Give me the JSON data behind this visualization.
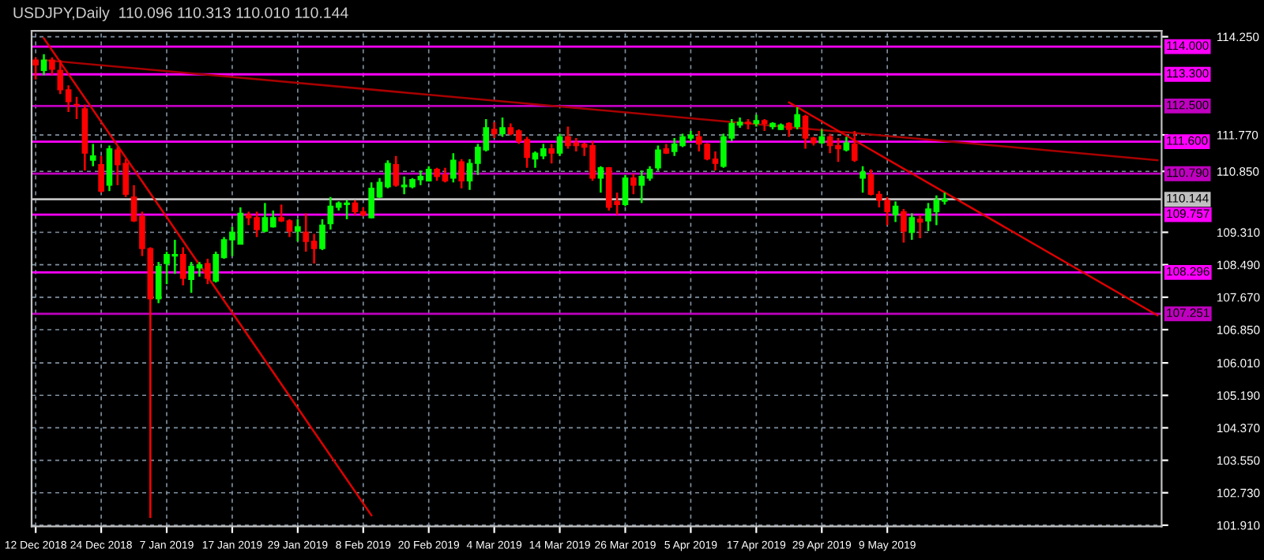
{
  "chart_data": {
    "type": "candlestick",
    "title": "USDJPY,Daily  110.096 110.313 110.010 110.144",
    "categories": [
      "12 Dec 2018",
      null,
      null,
      null,
      null,
      null,
      null,
      null,
      "24 Dec 2018",
      null,
      null,
      null,
      null,
      null,
      null,
      null,
      "7 Jan 2019",
      null,
      null,
      null,
      null,
      null,
      null,
      null,
      "17 Jan 2019",
      null,
      null,
      null,
      null,
      null,
      null,
      null,
      "29 Jan 2019",
      null,
      null,
      null,
      null,
      null,
      null,
      null,
      "8 Feb 2019",
      null,
      null,
      null,
      null,
      null,
      null,
      null,
      "20 Feb 2019",
      null,
      null,
      null,
      null,
      null,
      null,
      null,
      "4 Mar 2019",
      null,
      null,
      null,
      null,
      null,
      null,
      null,
      "14 Mar 2019",
      null,
      null,
      null,
      null,
      null,
      null,
      null,
      "26 Mar 2019",
      null,
      null,
      null,
      null,
      null,
      null,
      null,
      "5 Apr 2019",
      null,
      null,
      null,
      null,
      null,
      null,
      null,
      "17 Apr 2019",
      null,
      null,
      null,
      null,
      null,
      null,
      null,
      "29 Apr 2019",
      null,
      null,
      null,
      null,
      null,
      null,
      null,
      "9 May 2019",
      null,
      null,
      null,
      null,
      null,
      null,
      null,
      null,
      null,
      null,
      null,
      null,
      null,
      null,
      null,
      null,
      null,
      null,
      null,
      null,
      null,
      null,
      null,
      null,
      null,
      null,
      null,
      null,
      null,
      null,
      null,
      null,
      null
    ],
    "ohlc": [
      [
        113.66,
        113.73,
        113.17,
        113.54
      ],
      [
        113.4,
        113.81,
        113.28,
        113.66
      ],
      [
        113.66,
        113.73,
        113.28,
        113.43
      ],
      [
        113.4,
        113.66,
        112.8,
        112.91
      ],
      [
        112.91,
        113.02,
        112.35,
        112.61
      ],
      [
        112.54,
        112.73,
        112.17,
        112.52
      ],
      [
        112.43,
        112.54,
        110.87,
        111.31
      ],
      [
        111.13,
        111.54,
        110.98,
        111.24
      ],
      [
        111.02,
        111.24,
        110.31,
        110.35
      ],
      [
        110.5,
        111.5,
        110.35,
        111.42
      ],
      [
        111.39,
        111.46,
        110.5,
        111.02
      ],
      [
        111.05,
        111.16,
        110.2,
        110.27
      ],
      [
        110.2,
        110.5,
        109.57,
        109.6
      ],
      [
        109.71,
        109.83,
        108.71,
        108.9
      ],
      [
        108.9,
        108.93,
        102.09,
        107.63
      ],
      [
        107.63,
        108.56,
        107.52,
        108.45
      ],
      [
        108.52,
        108.82,
        108.0,
        108.75
      ],
      [
        108.71,
        109.12,
        108.26,
        108.75
      ],
      [
        108.75,
        108.93,
        107.97,
        108.15
      ],
      [
        108.12,
        108.56,
        107.78,
        108.45
      ],
      [
        108.41,
        108.56,
        108.19,
        108.49
      ],
      [
        108.52,
        108.64,
        108.0,
        108.15
      ],
      [
        108.08,
        108.82,
        108.04,
        108.75
      ],
      [
        108.67,
        109.19,
        108.64,
        109.12
      ],
      [
        109.12,
        109.45,
        108.71,
        109.31
      ],
      [
        109.01,
        109.94,
        109.01,
        109.79
      ],
      [
        109.75,
        109.83,
        109.49,
        109.68
      ],
      [
        109.68,
        109.83,
        109.19,
        109.38
      ],
      [
        109.34,
        110.05,
        109.31,
        109.68
      ],
      [
        109.45,
        109.86,
        109.43,
        109.68
      ],
      [
        109.68,
        110.01,
        109.57,
        109.6
      ],
      [
        109.6,
        109.64,
        109.19,
        109.34
      ],
      [
        109.34,
        109.64,
        109.08,
        109.45
      ],
      [
        109.31,
        109.79,
        108.82,
        109.08
      ],
      [
        109.08,
        109.27,
        108.52,
        108.9
      ],
      [
        108.9,
        109.64,
        108.86,
        109.49
      ],
      [
        109.53,
        110.2,
        109.38,
        109.97
      ],
      [
        109.94,
        110.09,
        109.86,
        110.05
      ],
      [
        110.01,
        110.12,
        109.64,
        110.05
      ],
      [
        110.05,
        110.12,
        109.75,
        109.83
      ],
      [
        109.83,
        109.94,
        109.71,
        109.75
      ],
      [
        109.68,
        110.57,
        109.66,
        110.42
      ],
      [
        110.2,
        110.68,
        110.18,
        110.57
      ],
      [
        110.46,
        111.13,
        110.42,
        111.05
      ],
      [
        111.02,
        111.24,
        110.46,
        110.5
      ],
      [
        110.46,
        110.72,
        110.27,
        110.5
      ],
      [
        110.46,
        110.68,
        110.42,
        110.64
      ],
      [
        110.64,
        110.87,
        110.5,
        110.72
      ],
      [
        110.61,
        110.98,
        110.59,
        110.9
      ],
      [
        110.9,
        110.94,
        110.61,
        110.72
      ],
      [
        110.76,
        110.94,
        110.57,
        110.61
      ],
      [
        110.68,
        111.31,
        110.57,
        111.13
      ],
      [
        111.09,
        111.16,
        110.42,
        110.61
      ],
      [
        110.61,
        111.16,
        110.38,
        111.05
      ],
      [
        111.05,
        111.54,
        110.76,
        111.46
      ],
      [
        111.39,
        112.17,
        111.35,
        111.95
      ],
      [
        111.91,
        112.09,
        111.69,
        111.8
      ],
      [
        111.8,
        112.21,
        111.72,
        111.95
      ],
      [
        111.95,
        112.06,
        111.76,
        111.8
      ],
      [
        111.87,
        111.91,
        111.54,
        111.61
      ],
      [
        111.65,
        111.72,
        110.94,
        111.2
      ],
      [
        111.16,
        111.35,
        110.94,
        111.31
      ],
      [
        111.24,
        111.54,
        111.16,
        111.42
      ],
      [
        111.42,
        111.54,
        111.05,
        111.31
      ],
      [
        111.31,
        111.8,
        111.24,
        111.72
      ],
      [
        111.72,
        111.98,
        111.42,
        111.5
      ],
      [
        111.57,
        111.69,
        111.35,
        111.5
      ],
      [
        111.54,
        111.57,
        111.24,
        111.46
      ],
      [
        111.5,
        111.61,
        110.61,
        110.68
      ],
      [
        110.68,
        110.98,
        110.31,
        110.94
      ],
      [
        110.94,
        110.96,
        109.86,
        109.94
      ],
      [
        110.09,
        110.31,
        109.75,
        110.01
      ],
      [
        110.01,
        110.76,
        109.97,
        110.68
      ],
      [
        110.68,
        110.79,
        110.27,
        110.5
      ],
      [
        110.5,
        110.87,
        110.05,
        110.72
      ],
      [
        110.68,
        110.98,
        110.61,
        110.9
      ],
      [
        110.94,
        111.5,
        110.87,
        111.39
      ],
      [
        111.42,
        111.54,
        111.29,
        111.31
      ],
      [
        111.35,
        111.69,
        111.24,
        111.54
      ],
      [
        111.5,
        111.8,
        111.46,
        111.72
      ],
      [
        111.69,
        111.87,
        111.61,
        111.76
      ],
      [
        111.72,
        111.87,
        111.35,
        111.54
      ],
      [
        111.54,
        111.56,
        111.13,
        111.16
      ],
      [
        111.16,
        111.35,
        110.87,
        111.05
      ],
      [
        110.98,
        111.8,
        110.94,
        111.72
      ],
      [
        111.69,
        112.17,
        111.61,
        112.06
      ],
      [
        112.02,
        112.21,
        111.95,
        112.09
      ],
      [
        112.09,
        112.17,
        111.91,
        112.06
      ],
      [
        112.06,
        112.28,
        111.98,
        112.13
      ],
      [
        112.13,
        112.17,
        111.87,
        112.06
      ],
      [
        111.98,
        112.09,
        111.91,
        112.06
      ],
      [
        111.91,
        112.06,
        111.89,
        112.02
      ],
      [
        112.06,
        112.09,
        111.72,
        111.91
      ],
      [
        111.98,
        112.47,
        111.91,
        112.28
      ],
      [
        112.24,
        112.28,
        111.42,
        111.69
      ],
      [
        111.69,
        111.72,
        111.5,
        111.57
      ],
      [
        111.57,
        111.91,
        111.54,
        111.72
      ],
      [
        111.72,
        111.8,
        111.31,
        111.5
      ],
      [
        111.5,
        111.69,
        111.09,
        111.42
      ],
      [
        111.39,
        111.72,
        111.35,
        111.57
      ],
      [
        111.54,
        111.87,
        111.09,
        111.13
      ],
      [
        110.68,
        110.98,
        110.31,
        110.83
      ],
      [
        110.76,
        110.9,
        110.24,
        110.27
      ],
      [
        110.27,
        110.35,
        109.94,
        110.12
      ],
      [
        110.12,
        110.2,
        109.49,
        109.83
      ],
      [
        109.75,
        110.09,
        109.57,
        109.97
      ],
      [
        109.83,
        109.9,
        109.05,
        109.34
      ],
      [
        109.31,
        109.79,
        109.12,
        109.68
      ],
      [
        109.64,
        109.75,
        109.16,
        109.57
      ],
      [
        109.6,
        110.05,
        109.34,
        109.9
      ],
      [
        109.83,
        110.24,
        109.49,
        110.12
      ],
      [
        110.096,
        110.313,
        110.01,
        110.144
      ],
      null,
      null,
      null,
      null,
      null,
      null,
      null,
      null,
      null,
      null,
      null,
      null,
      null,
      null,
      null,
      null,
      null,
      null,
      null,
      null,
      null,
      null,
      null,
      null,
      null,
      null
    ],
    "series": [
      {
        "type": "line",
        "color": "#a80000",
        "values": [
          null,
          113.66,
          null,
          null,
          null,
          null,
          null,
          null,
          null,
          null,
          null,
          null,
          null,
          null,
          null,
          null,
          null,
          null,
          null,
          null,
          null,
          null,
          null,
          null,
          null,
          null,
          null,
          null,
          null,
          null,
          null,
          null,
          null,
          null,
          null,
          null,
          null,
          null,
          null,
          null,
          null,
          null,
          null,
          null,
          null,
          null,
          null,
          null,
          null,
          null,
          null,
          null,
          null,
          null,
          null,
          null,
          null,
          null,
          null,
          null,
          null,
          null,
          null,
          null,
          null,
          null,
          null,
          null,
          null,
          null,
          null,
          null,
          null,
          null,
          null,
          null,
          null,
          null,
          null,
          null,
          null,
          null,
          null,
          null,
          null,
          null,
          null,
          null,
          null,
          null,
          null,
          null,
          null,
          null,
          null,
          null,
          null,
          null,
          null,
          null,
          null,
          null,
          null,
          null,
          null,
          null,
          null,
          null,
          null,
          null,
          null,
          null,
          null,
          null,
          null,
          null,
          null,
          null,
          null,
          null,
          null,
          null,
          null,
          null,
          null,
          null,
          null,
          null,
          null,
          null,
          null,
          null,
          null,
          null,
          null,
          null,
          null,
          111.13
        ]
      },
      {
        "type": "line",
        "color": "#e00000",
        "values": [
          null,
          114.21,
          null,
          null,
          null,
          null,
          null,
          null,
          null,
          null,
          null,
          null,
          null,
          null,
          null,
          null,
          null,
          null,
          null,
          null,
          null,
          null,
          null,
          null,
          null,
          null,
          null,
          null,
          null,
          null,
          null,
          null,
          null,
          null,
          null,
          null,
          null,
          null,
          null,
          null,
          null,
          102.16,
          null,
          null,
          null,
          null,
          null,
          null,
          null,
          null,
          null,
          null,
          null,
          null,
          null,
          null,
          null,
          null,
          null,
          null,
          null,
          null,
          null,
          null,
          null,
          null,
          null,
          null,
          null,
          null,
          null,
          null,
          null,
          null,
          null,
          null,
          null,
          null,
          null,
          null,
          null,
          null,
          null,
          null,
          null,
          null,
          null,
          null,
          null,
          null,
          null,
          null,
          null,
          null,
          null,
          null,
          null,
          null,
          null,
          null,
          null,
          null,
          null,
          null,
          null,
          null,
          null,
          null,
          null,
          null,
          null,
          null,
          null,
          null,
          null,
          null,
          null,
          null,
          null,
          null,
          null,
          null,
          null,
          null,
          null,
          null,
          null,
          null,
          null,
          null,
          null,
          null,
          null,
          null,
          null,
          null,
          null,
          null
        ]
      },
      {
        "type": "line",
        "color": "#e00000",
        "values": [
          null,
          null,
          null,
          null,
          null,
          null,
          null,
          null,
          null,
          null,
          null,
          null,
          null,
          null,
          null,
          null,
          null,
          null,
          null,
          null,
          null,
          null,
          null,
          null,
          null,
          null,
          null,
          null,
          null,
          null,
          null,
          null,
          null,
          null,
          null,
          null,
          null,
          null,
          null,
          null,
          null,
          null,
          null,
          null,
          null,
          null,
          null,
          null,
          null,
          null,
          null,
          null,
          null,
          null,
          null,
          null,
          null,
          null,
          null,
          null,
          null,
          null,
          null,
          null,
          null,
          null,
          null,
          null,
          null,
          null,
          null,
          null,
          null,
          null,
          null,
          null,
          null,
          null,
          null,
          null,
          null,
          null,
          null,
          null,
          null,
          null,
          null,
          null,
          null,
          null,
          null,
          null,
          112.59,
          null,
          null,
          null,
          null,
          null,
          null,
          null,
          null,
          null,
          null,
          null,
          null,
          null,
          null,
          null,
          null,
          null,
          null,
          null,
          null,
          null,
          null,
          null,
          null,
          null,
          null,
          null,
          null,
          null,
          null,
          null,
          null,
          null,
          null,
          null,
          null,
          null,
          null,
          null,
          null,
          null,
          null,
          null,
          null,
          107.21
        ]
      }
    ],
    "ylim": [
      101.88,
      114.4
    ],
    "yticks": [
      {
        "value": 101.91,
        "label": "101.910"
      },
      {
        "value": 102.73,
        "label": "102.730"
      },
      {
        "value": 103.55,
        "label": "103.550"
      },
      {
        "value": 104.37,
        "label": "104.370"
      },
      {
        "value": 105.19,
        "label": "105.190"
      },
      {
        "value": 106.01,
        "label": "106.010"
      },
      {
        "value": 106.85,
        "label": "106.850"
      },
      {
        "value": 107.67,
        "label": "107.670"
      },
      {
        "value": 108.49,
        "label": "108.490"
      },
      {
        "value": 109.31,
        "label": "109.310"
      },
      {
        "value": 110.85,
        "label": "110.850"
      },
      {
        "value": 111.77,
        "label": "111.770"
      },
      {
        "value": 114.25,
        "label": "114.250"
      }
    ],
    "ref_lines": [
      {
        "axis": "y",
        "value": 114.0,
        "label": "114.000",
        "color": "#ff00ff"
      },
      {
        "axis": "y",
        "value": 113.3,
        "label": "113.300",
        "color": "#ff00ff"
      },
      {
        "axis": "y",
        "value": 112.5,
        "label": "112.500",
        "color": "#c000c0"
      },
      {
        "axis": "y",
        "value": 111.6,
        "label": "111.600",
        "color": "#ff00ff"
      },
      {
        "axis": "y",
        "value": 110.79,
        "label": "110.790",
        "color": "#c000c0"
      },
      {
        "axis": "y",
        "value": 110.144,
        "label": "110.144",
        "color": "#c0c0c0"
      },
      {
        "axis": "y",
        "value": 109.757,
        "label": "109.757",
        "color": "#ff00ff"
      },
      {
        "axis": "y",
        "value": 108.296,
        "label": "108.296",
        "color": "#ff00ff"
      },
      {
        "axis": "y",
        "value": 107.251,
        "label": "107.251",
        "color": "#c000c0"
      }
    ],
    "grid": true
  }
}
